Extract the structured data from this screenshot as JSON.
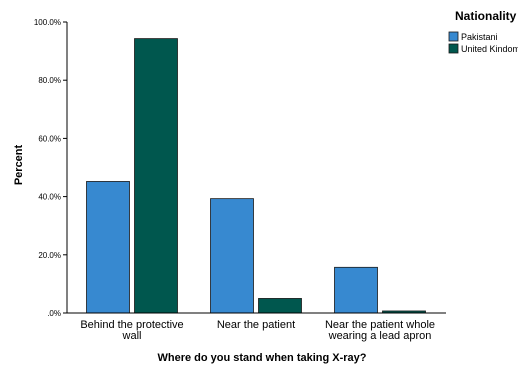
{
  "chart_data": {
    "type": "bar",
    "title": "",
    "xlabel": "Where do you stand when taking X-ray?",
    "ylabel": "Percent",
    "ylim": [
      0,
      100
    ],
    "yticks": [
      0,
      20,
      40,
      60,
      80,
      100
    ],
    "ytick_labels": [
      ".0%",
      "20.0%",
      "40.0%",
      "60.0%",
      "80.0%",
      "100.0%"
    ],
    "categories": [
      [
        "Behind the protective",
        "wall"
      ],
      [
        "Near the patient"
      ],
      [
        "Near the patient whole",
        "wearing a lead apron"
      ]
    ],
    "series": [
      {
        "name": "Pakistani",
        "values": [
          45.2,
          39.3,
          15.7
        ],
        "color": "#3789d0"
      },
      {
        "name": "United Kingdom",
        "values": [
          94.3,
          5.0,
          0.7
        ],
        "color": "#00574e"
      }
    ],
    "grid": false,
    "legend": {
      "title": "Nationality",
      "placement": "top-right",
      "labels": [
        "Pakistani",
        "United Kindom"
      ]
    }
  }
}
